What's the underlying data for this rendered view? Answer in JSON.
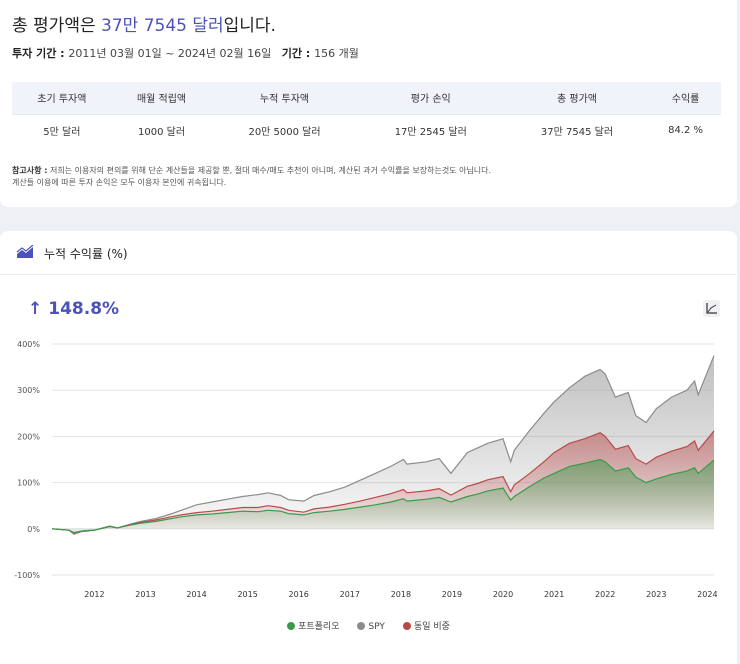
{
  "summary": {
    "headline_prefix": "총 평가액은 ",
    "headline_value": "37만 7545 달러",
    "headline_suffix": "입니다.",
    "period_label": "투자 기간 : ",
    "period_value": "2011년 03월 01일 ~ 2024년 02월 16일",
    "months_label": "기간 : ",
    "months_value": "156 개월",
    "table": {
      "headers": [
        "초기 투자액",
        "매월 적립액",
        "누적 투자액",
        "평가 손익",
        "총 평가액",
        "수익률"
      ],
      "values": [
        "5만 달러",
        "1000 달러",
        "20만 5000 달러",
        "17만 2545 달러",
        "37만 7545 달러",
        "84.2 %"
      ]
    },
    "note_label": "참고사항 :",
    "note_line1": " 저희는 이용자의 편의를 위해 단순 계산들을 제공할 뿐, 절대 매수/매도 추천이 아니며, 계산된 과거 수익률을 보장하는것도 아닙니다.",
    "note_line2": "계산들 이용에 따른 투자 손익은 모두 이용자 본인에 귀속됩니다."
  },
  "chart_section": {
    "title": "누적 수익률 (%)",
    "return_arrow": "↑",
    "return_value": "148.8%",
    "icon": "area-trend-icon",
    "button_icon": "chart-axes-icon",
    "accent_color": "#4b53b8"
  },
  "chart_data": {
    "type": "area",
    "ylim": [
      -100,
      400
    ],
    "yticks": [
      400,
      300,
      200,
      100,
      0,
      -100
    ],
    "ytick_labels": [
      "400%",
      "300%",
      "200%",
      "100%",
      "0%",
      "-100%"
    ],
    "xlim": [
      2011.17,
      2024.13
    ],
    "xticks": [
      2012,
      2013,
      2014,
      2015,
      2016,
      2017,
      2018,
      2019,
      2020,
      2021,
      2022,
      2023,
      2024
    ],
    "xtick_labels": [
      "2012",
      "2013",
      "2014",
      "2015",
      "2016",
      "2017",
      "2018",
      "2019",
      "2020",
      "2021",
      "2022",
      "2023",
      "2024"
    ],
    "grid": true,
    "legend_position": "bottom",
    "x": [
      2011.17,
      2011.5,
      2011.6,
      2011.75,
      2011.85,
      2012.0,
      2012.3,
      2012.45,
      2012.7,
      2012.9,
      2013.2,
      2013.5,
      2013.7,
      2014.0,
      2014.3,
      2014.6,
      2014.9,
      2015.2,
      2015.4,
      2015.65,
      2015.8,
      2016.1,
      2016.3,
      2016.6,
      2016.9,
      2017.2,
      2017.5,
      2017.8,
      2018.05,
      2018.12,
      2018.5,
      2018.75,
      2018.98,
      2019.3,
      2019.5,
      2019.7,
      2020.0,
      2020.15,
      2020.22,
      2020.5,
      2020.8,
      2021.0,
      2021.3,
      2021.6,
      2021.9,
      2022.0,
      2022.2,
      2022.45,
      2022.6,
      2022.8,
      2023.0,
      2023.3,
      2023.6,
      2023.75,
      2023.82,
      2024.13
    ],
    "series": [
      {
        "name": "포트폴리오",
        "color": "#3a9a4a",
        "values": [
          0,
          -3,
          -8,
          -5,
          -4,
          -3,
          5,
          2,
          8,
          12,
          16,
          22,
          26,
          30,
          32,
          35,
          38,
          37,
          40,
          38,
          33,
          30,
          35,
          38,
          42,
          47,
          52,
          58,
          65,
          60,
          64,
          68,
          58,
          70,
          75,
          82,
          88,
          62,
          70,
          90,
          110,
          120,
          135,
          142,
          150,
          145,
          125,
          132,
          112,
          100,
          108,
          118,
          125,
          132,
          120,
          148.8
        ]
      },
      {
        "name": "SPY",
        "color": "#8c8c8c",
        "values": [
          0,
          -3,
          -12,
          -6,
          -5,
          -3,
          6,
          2,
          10,
          16,
          22,
          32,
          40,
          52,
          58,
          64,
          70,
          74,
          78,
          72,
          63,
          60,
          72,
          80,
          90,
          105,
          120,
          135,
          150,
          140,
          145,
          152,
          120,
          165,
          175,
          185,
          195,
          145,
          170,
          210,
          250,
          275,
          305,
          330,
          345,
          335,
          285,
          295,
          245,
          230,
          260,
          285,
          300,
          320,
          290,
          375
        ]
      },
      {
        "name": "동일 비중",
        "color": "#b84a4a",
        "values": [
          0,
          -3,
          -9,
          -5,
          -4,
          -3,
          5,
          2,
          9,
          14,
          19,
          26,
          30,
          35,
          38,
          42,
          46,
          46,
          50,
          46,
          40,
          36,
          43,
          47,
          53,
          60,
          68,
          76,
          85,
          78,
          82,
          87,
          73,
          92,
          98,
          106,
          113,
          80,
          95,
          118,
          145,
          165,
          185,
          195,
          208,
          200,
          172,
          180,
          152,
          140,
          155,
          168,
          178,
          190,
          170,
          212
        ]
      }
    ]
  }
}
